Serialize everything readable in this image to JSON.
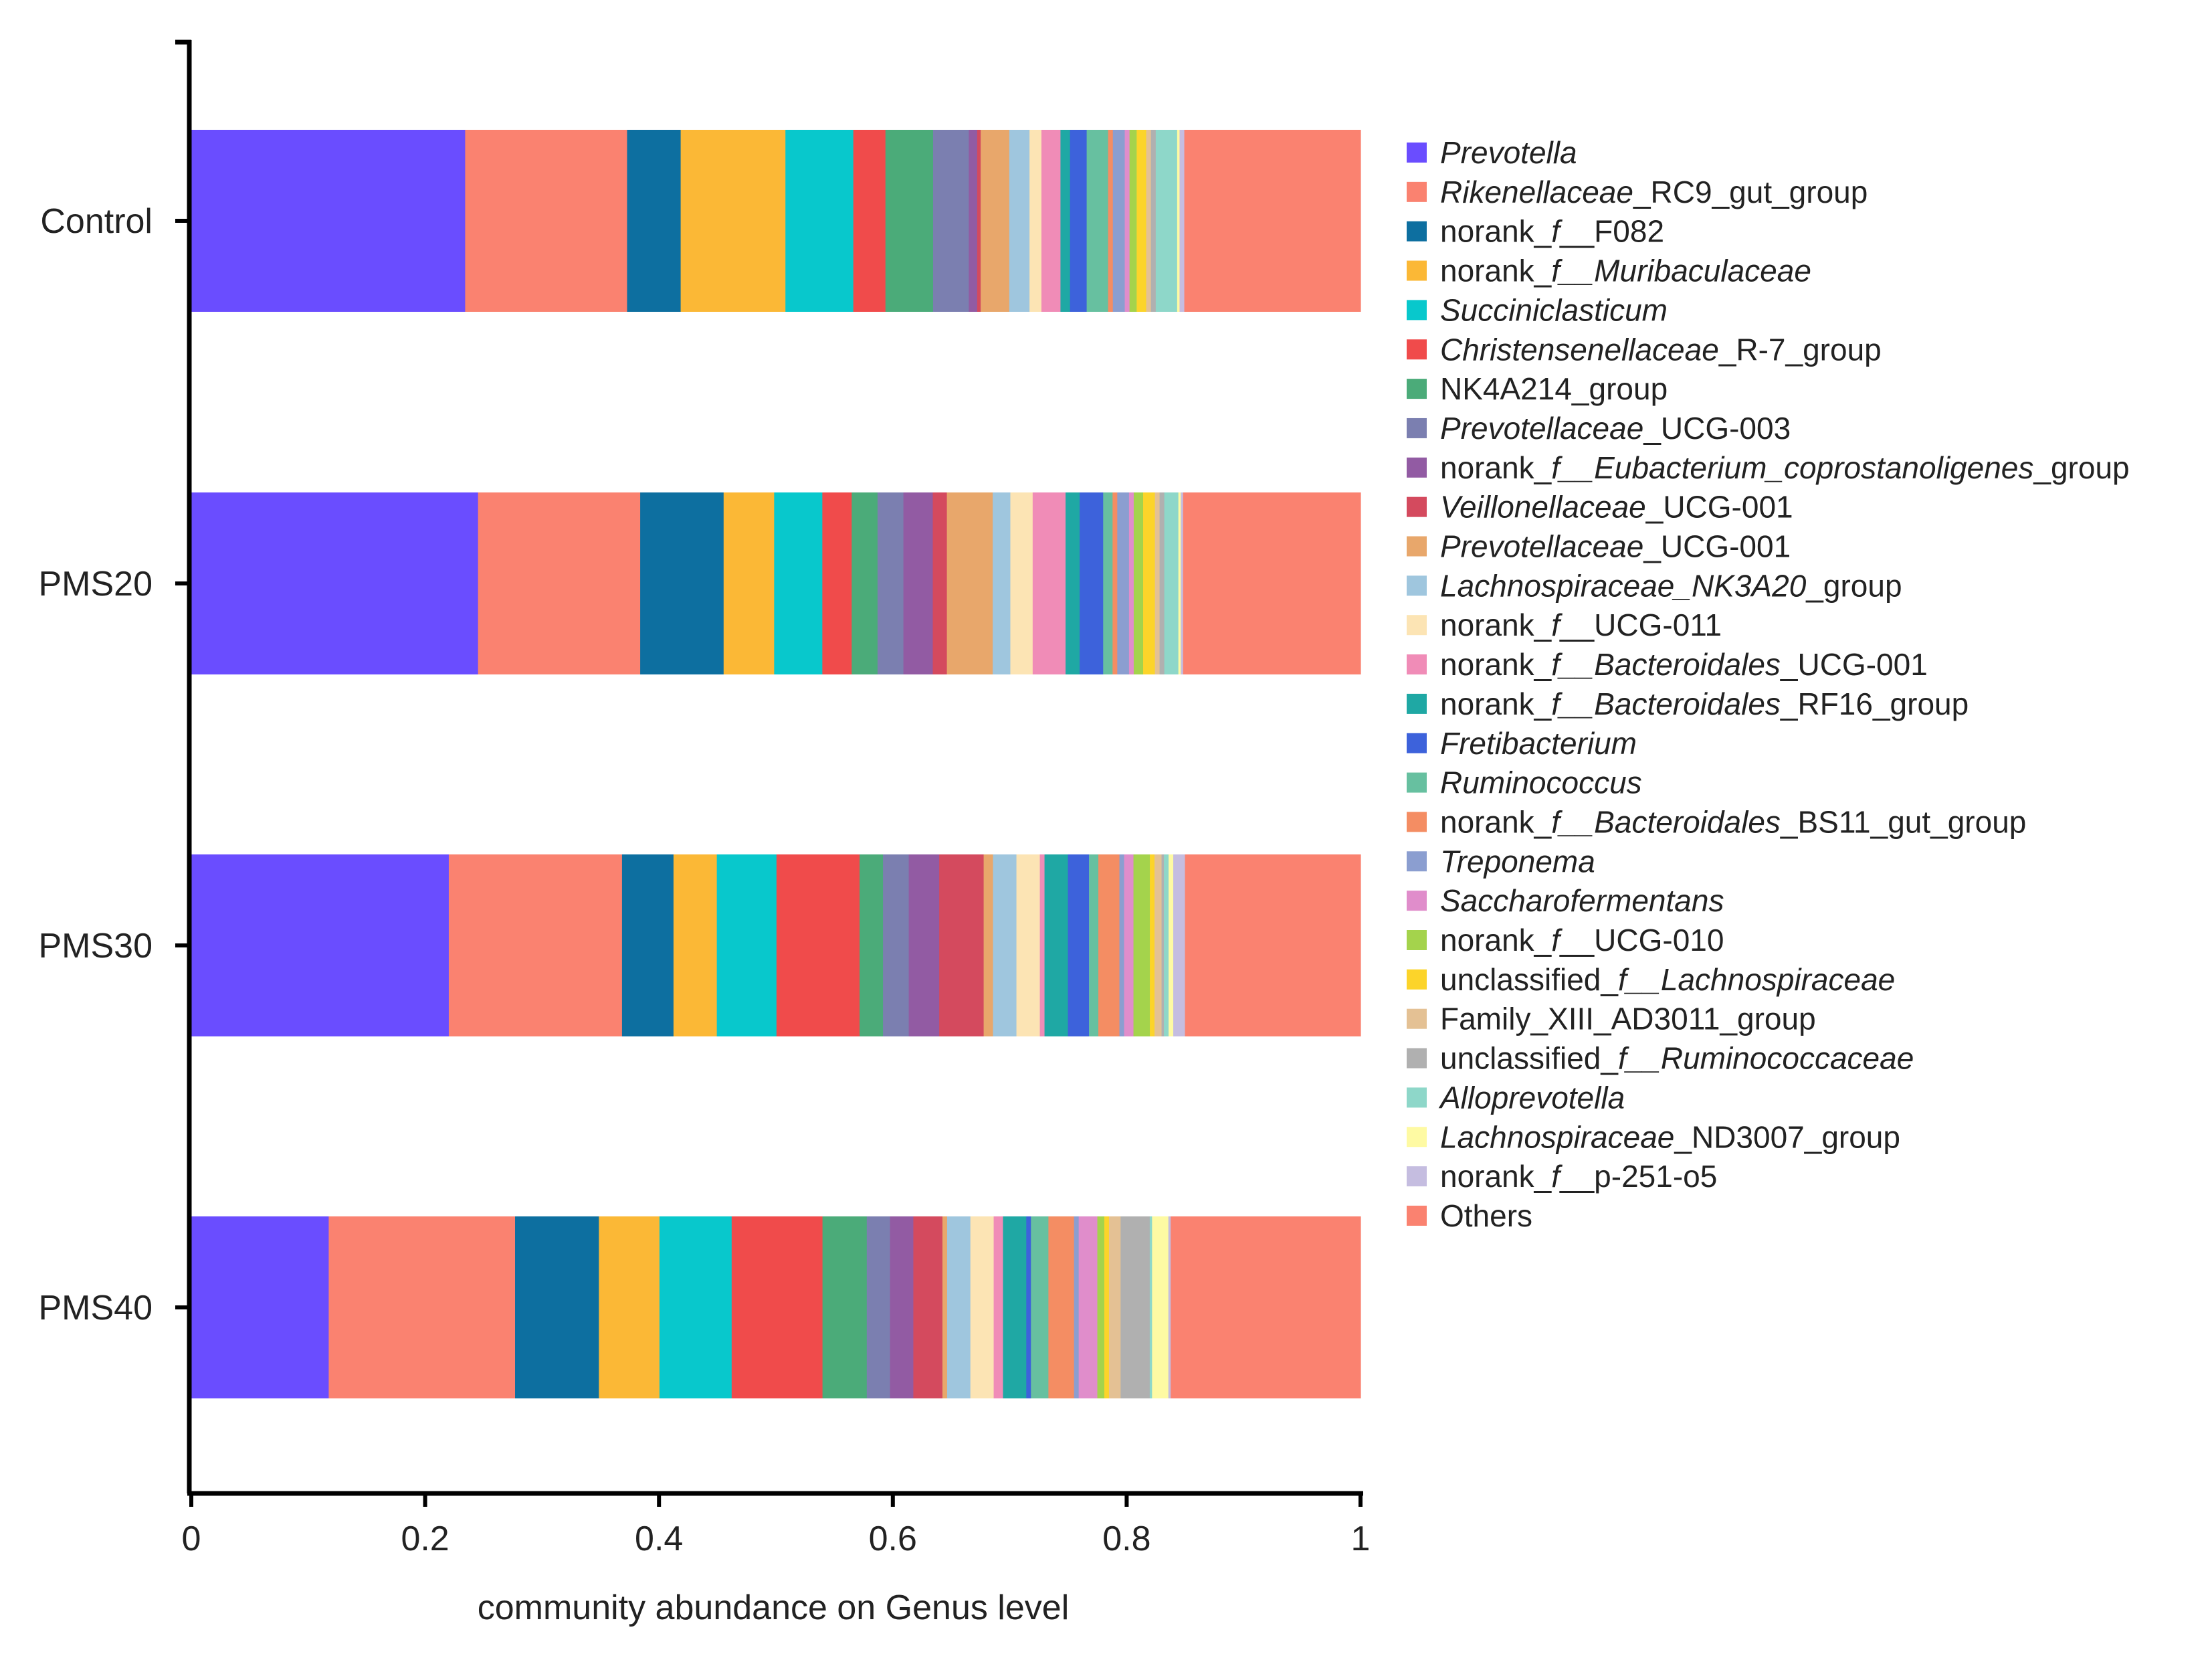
{
  "chart_data": {
    "type": "bar",
    "orientation": "horizontal",
    "stacked": true,
    "title": "",
    "xlabel": "community abundance on Genus level",
    "ylabel": "",
    "xlim": [
      0,
      1
    ],
    "xticks": [
      {
        "value": 0,
        "label": "0"
      },
      {
        "value": 0.2,
        "label": "0.2"
      },
      {
        "value": 0.4,
        "label": "0.4"
      },
      {
        "value": 0.6,
        "label": "0.6"
      },
      {
        "value": 0.8,
        "label": "0.8"
      },
      {
        "value": 1,
        "label": "1"
      }
    ],
    "grid": false,
    "legend_position": "right",
    "categories": [
      "Control",
      "PMS20",
      "PMS30",
      "PMS40"
    ],
    "series": [
      {
        "name": "Prevotella",
        "display": [
          {
            "t": "Prevotella",
            "i": true
          }
        ],
        "color": "#6a4dff",
        "values": [
          0.23,
          0.244,
          0.22,
          0.118
        ]
      },
      {
        "name": "Rikenellaceae_RC9_gut_group",
        "display": [
          {
            "t": "Rikenellaceae",
            "i": true
          },
          {
            "t": "_RC9_gut_group",
            "i": false
          }
        ],
        "color": "#fa8270",
        "values": [
          0.136,
          0.138,
          0.148,
          0.16
        ]
      },
      {
        "name": "norank_f__F082",
        "display": [
          {
            "t": "norank_",
            "i": false
          },
          {
            "t": "f",
            "i": true
          },
          {
            "t": "__F082",
            "i": false
          }
        ],
        "color": "#0d6fa0",
        "values": [
          0.045,
          0.071,
          0.044,
          0.072
        ]
      },
      {
        "name": "norank_f__Muribaculaceae",
        "display": [
          {
            "t": "norank_",
            "i": false
          },
          {
            "t": "f__Muribaculaceae",
            "i": true
          }
        ],
        "color": "#fbb836",
        "values": [
          0.088,
          0.043,
          0.037,
          0.052
        ]
      },
      {
        "name": "Succiniclasticum",
        "display": [
          {
            "t": "Succiniclasticum",
            "i": true
          }
        ],
        "color": "#08c8cc",
        "values": [
          0.057,
          0.041,
          0.051,
          0.062
        ]
      },
      {
        "name": "Christensenellaceae_R-7_group",
        "display": [
          {
            "t": "Christensenellaceae",
            "i": true
          },
          {
            "t": "_R-7_group",
            "i": false
          }
        ],
        "color": "#f04b4b",
        "values": [
          0.027,
          0.025,
          0.071,
          0.078
        ]
      },
      {
        "name": "NK4A214_group",
        "display": [
          {
            "t": "NK4A214_group",
            "i": false
          }
        ],
        "color": "#4bab79",
        "values": [
          0.04,
          0.022,
          0.02,
          0.038
        ]
      },
      {
        "name": "Prevotellaceae_UCG-003",
        "display": [
          {
            "t": "Prevotellaceae",
            "i": true
          },
          {
            "t": "_UCG-003",
            "i": false
          }
        ],
        "color": "#7b7fb0",
        "values": [
          0.03,
          0.022,
          0.022,
          0.02
        ]
      },
      {
        "name": "norank_f__Eubacterium_coprostanoligenes_group",
        "display": [
          {
            "t": "norank_",
            "i": false
          },
          {
            "t": "f__Eubacterium_coprostanoligenes",
            "i": true
          },
          {
            "t": "_group",
            "i": false
          }
        ],
        "color": "#925ba3",
        "values": [
          0.007,
          0.025,
          0.026,
          0.02
        ]
      },
      {
        "name": "Veillonellaceae_UCG-001",
        "display": [
          {
            "t": "Veillonellaceae",
            "i": true
          },
          {
            "t": "_UCG-001",
            "i": false
          }
        ],
        "color": "#d44a5e",
        "values": [
          0.003,
          0.012,
          0.038,
          0.025
        ]
      },
      {
        "name": "Prevotellaceae_UCG-001",
        "display": [
          {
            "t": "Prevotellaceae",
            "i": true
          },
          {
            "t": "_UCG-001",
            "i": false
          }
        ],
        "color": "#e8a76b",
        "values": [
          0.024,
          0.039,
          0.008,
          0.004
        ]
      },
      {
        "name": "Lachnospiraceae_NK3A20_group",
        "display": [
          {
            "t": "Lachnospiraceae_NK3A20",
            "i": true
          },
          {
            "t": "_group",
            "i": false
          }
        ],
        "color": "#9fc6de",
        "values": [
          0.017,
          0.015,
          0.02,
          0.02
        ]
      },
      {
        "name": "norank_f__UCG-011",
        "display": [
          {
            "t": "norank_",
            "i": false
          },
          {
            "t": "f",
            "i": true
          },
          {
            "t": "__UCG-011",
            "i": false
          }
        ],
        "color": "#fce4b4",
        "values": [
          0.01,
          0.019,
          0.02,
          0.02
        ]
      },
      {
        "name": "norank_f__Bacteroidales_UCG-001",
        "display": [
          {
            "t": "norank_",
            "i": false
          },
          {
            "t": "f__Bacteroidales",
            "i": true
          },
          {
            "t": "_UCG-001",
            "i": false
          }
        ],
        "color": "#f08cb7",
        "values": [
          0.016,
          0.028,
          0.004,
          0.008
        ]
      },
      {
        "name": "norank_f__Bacteroidales_RF16_group",
        "display": [
          {
            "t": "norank_",
            "i": false
          },
          {
            "t": "f__Bacteroidales",
            "i": true
          },
          {
            "t": "_RF16_group",
            "i": false
          }
        ],
        "color": "#1fa8a4",
        "values": [
          0.008,
          0.012,
          0.02,
          0.02
        ]
      },
      {
        "name": "Fretibacterium",
        "display": [
          {
            "t": "Fretibacterium",
            "i": true
          }
        ],
        "color": "#3d62db",
        "values": [
          0.014,
          0.02,
          0.018,
          0.004
        ]
      },
      {
        "name": "Ruminococcus",
        "display": [
          {
            "t": "Ruminococcus",
            "i": true
          }
        ],
        "color": "#67c0a0",
        "values": [
          0.018,
          0.008,
          0.008,
          0.015
        ]
      },
      {
        "name": "norank_f__Bacteroidales_BS11_gut_group",
        "display": [
          {
            "t": "norank_",
            "i": false
          },
          {
            "t": "f__Bacteroidales",
            "i": true
          },
          {
            "t": "_BS11_gut_group",
            "i": false
          }
        ],
        "color": "#f48d63",
        "values": [
          0.004,
          0.004,
          0.018,
          0.022
        ]
      },
      {
        "name": "Treponema",
        "display": [
          {
            "t": "Treponema",
            "i": true
          }
        ],
        "color": "#8b9ed0",
        "values": [
          0.01,
          0.01,
          0.004,
          0.004
        ]
      },
      {
        "name": "Saccharofermentans",
        "display": [
          {
            "t": "Saccharofermentans",
            "i": true
          }
        ],
        "color": "#e08dcb",
        "values": [
          0.004,
          0.004,
          0.008,
          0.016
        ]
      },
      {
        "name": "norank_f__UCG-010",
        "display": [
          {
            "t": "norank_",
            "i": false
          },
          {
            "t": "f",
            "i": true
          },
          {
            "t": "__UCG-010",
            "i": false
          }
        ],
        "color": "#a4d34c",
        "values": [
          0.006,
          0.008,
          0.014,
          0.006
        ]
      },
      {
        "name": "unclassified_f__Lachnospiraceae",
        "display": [
          {
            "t": "unclassified_",
            "i": false
          },
          {
            "t": "f__Lachnospiraceae",
            "i": true
          }
        ],
        "color": "#fcd42a",
        "values": [
          0.008,
          0.01,
          0.004,
          0.004
        ]
      },
      {
        "name": "Family_XIII_AD3011_group",
        "display": [
          {
            "t": "Family_XIII_AD3011_group",
            "i": false
          }
        ],
        "color": "#e4c194",
        "values": [
          0.004,
          0.004,
          0.006,
          0.01
        ]
      },
      {
        "name": "unclassified_f__Ruminococcaceae",
        "display": [
          {
            "t": "unclassified_",
            "i": false
          },
          {
            "t": "f__Ruminococcaceae",
            "i": true
          }
        ],
        "color": "#b0b0b0",
        "values": [
          0.004,
          0.004,
          0.002,
          0.025
        ]
      },
      {
        "name": "Alloprevotella",
        "display": [
          {
            "t": "Alloprevotella",
            "i": true
          }
        ],
        "color": "#8ed7c9",
        "values": [
          0.018,
          0.012,
          0.004,
          0.002
        ]
      },
      {
        "name": "Lachnospiraceae_ND3007_group",
        "display": [
          {
            "t": "Lachnospiraceae",
            "i": true
          },
          {
            "t": "_ND3007_group",
            "i": false
          }
        ],
        "color": "#fefaa3",
        "values": [
          0.002,
          0.002,
          0.004,
          0.014
        ]
      },
      {
        "name": "norank_f__p-251-o5",
        "display": [
          {
            "t": "norank_",
            "i": false
          },
          {
            "t": "f",
            "i": true
          },
          {
            "t": "__p-251-o5",
            "i": false
          }
        ],
        "color": "#c5bde0",
        "values": [
          0.004,
          0.002,
          0.01,
          0.002
        ]
      },
      {
        "name": "Others",
        "display": [
          {
            "t": "Others",
            "i": false
          }
        ],
        "color": "#fa8270",
        "values": [
          0.148,
          0.151,
          0.15,
          0.163
        ]
      }
    ]
  }
}
